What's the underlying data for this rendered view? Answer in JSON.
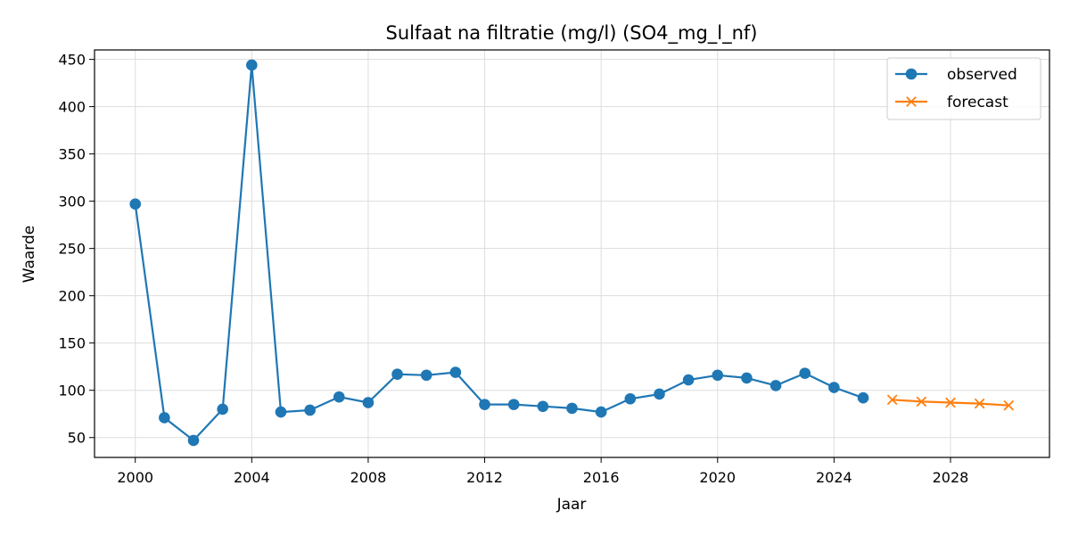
{
  "chart_data": {
    "type": "line",
    "title": "Sulfaat na filtratie (mg/l) (SO4_mg_l_nf)",
    "xlabel": "Jaar",
    "ylabel": "Waarde",
    "xlim": [
      1998.6,
      2031.4
    ],
    "ylim": [
      29,
      460
    ],
    "xticks": [
      2000,
      2004,
      2008,
      2012,
      2016,
      2020,
      2024,
      2028
    ],
    "yticks": [
      50,
      100,
      150,
      200,
      250,
      300,
      350,
      400,
      450
    ],
    "grid": true,
    "legend_position": "top-right",
    "series": [
      {
        "name": "observed",
        "color": "#1f77b4",
        "marker": "circle",
        "x": [
          2000,
          2001,
          2002,
          2003,
          2004,
          2005,
          2006,
          2007,
          2008,
          2009,
          2010,
          2011,
          2012,
          2013,
          2014,
          2015,
          2016,
          2017,
          2018,
          2019,
          2020,
          2021,
          2022,
          2023,
          2024,
          2025
        ],
        "values": [
          297,
          71,
          47,
          80,
          444,
          77,
          79,
          93,
          87,
          117,
          116,
          119,
          85,
          85,
          83,
          81,
          77,
          91,
          96,
          111,
          116,
          113,
          105,
          118,
          103,
          92
        ]
      },
      {
        "name": "forecast",
        "color": "#ff7f0e",
        "marker": "x",
        "x": [
          2026,
          2027,
          2028,
          2029,
          2030
        ],
        "values": [
          90,
          88,
          87,
          86,
          84
        ]
      }
    ]
  }
}
